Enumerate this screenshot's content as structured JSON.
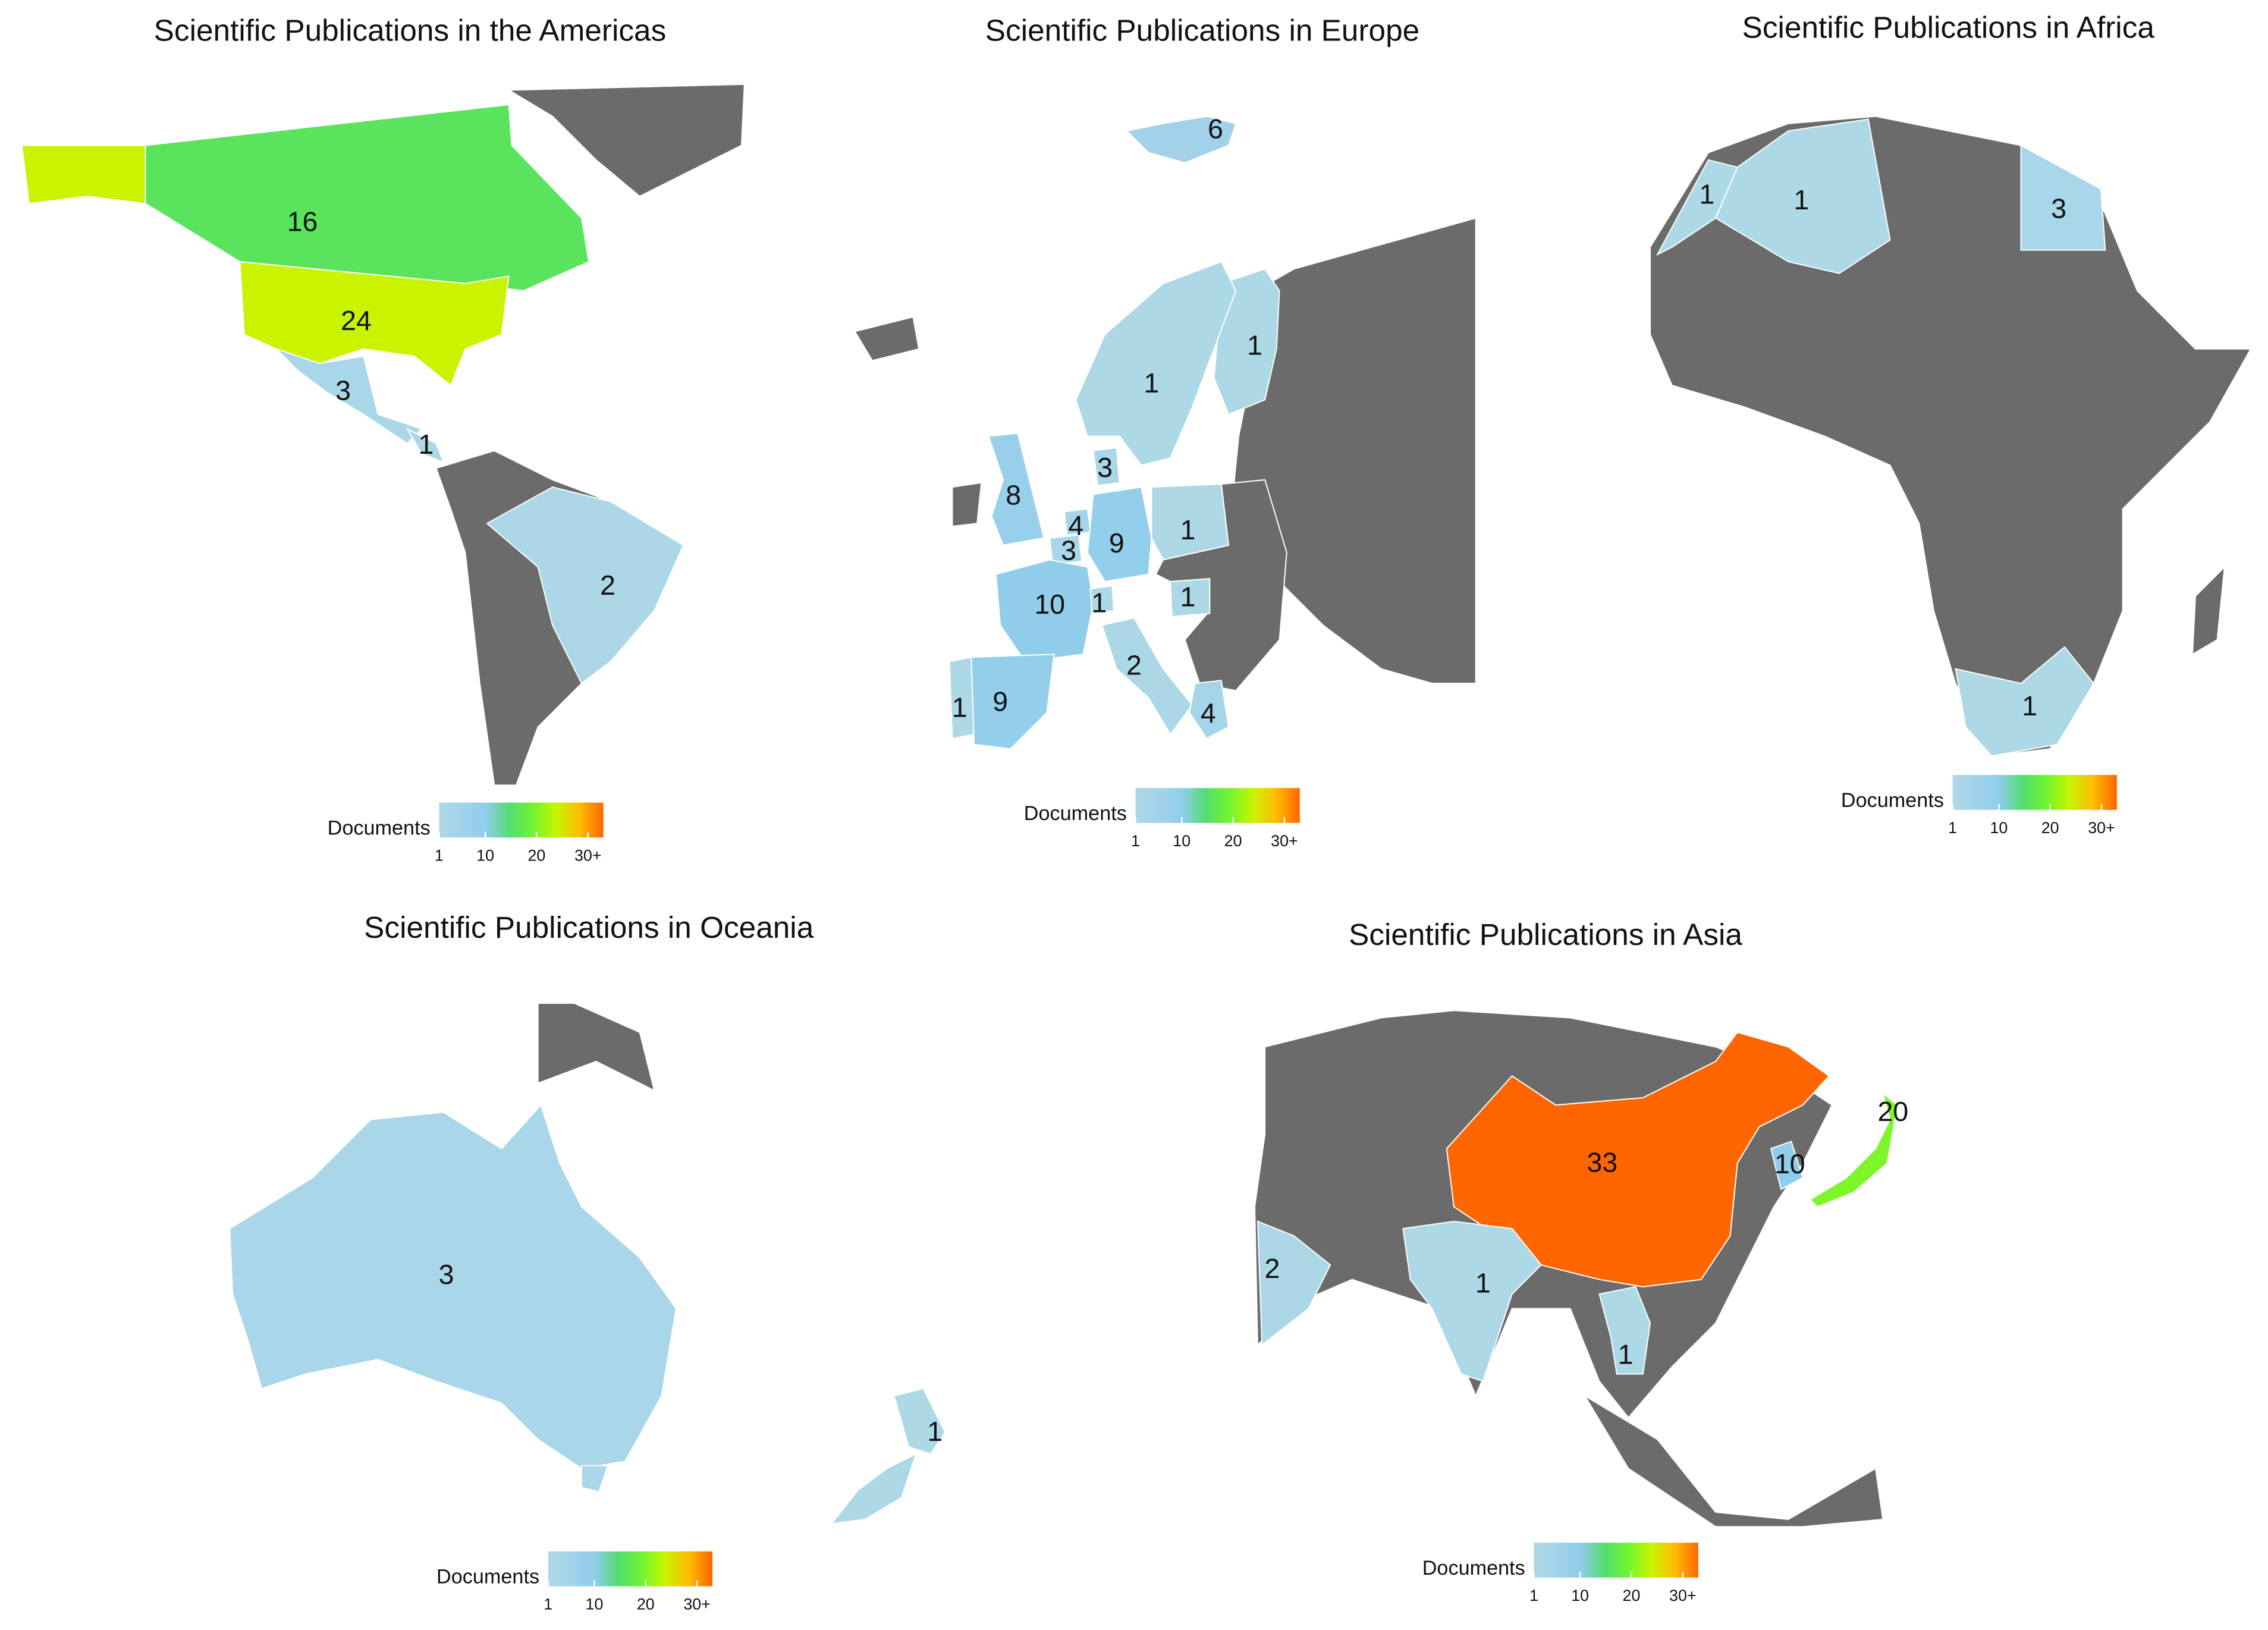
{
  "maps": [
    {
      "title": "Scientific Publications in the Americas",
      "values": [
        16,
        24,
        3,
        1,
        2
      ]
    },
    {
      "title": "Scientific Publications in Europe",
      "values": [
        6,
        1,
        1,
        3,
        8,
        4,
        3,
        9,
        1,
        10,
        1,
        1,
        2,
        1,
        9,
        4
      ]
    },
    {
      "title": "Scientific Publications in Africa",
      "values": [
        1,
        1,
        3,
        1
      ]
    },
    {
      "title": "Scientific Publications in Oceania",
      "values": [
        3,
        1
      ]
    },
    {
      "title": "Scientific Publications in Asia",
      "values": [
        33,
        20,
        10,
        2,
        1,
        1
      ]
    }
  ],
  "legend": {
    "title": "Documents",
    "lim": [
      1,
      33
    ],
    "ticks": [
      1,
      10,
      20,
      {
        "value": 30,
        "label": "30+"
      }
    ],
    "colors": [
      "#add8e6",
      "#a3d3ea",
      "#8ecdeb",
      "#52dd70",
      "#70f530",
      "#c8f500",
      "#ffbb00",
      "#ff6600"
    ]
  },
  "no_data_color": "#6b6b6b"
}
